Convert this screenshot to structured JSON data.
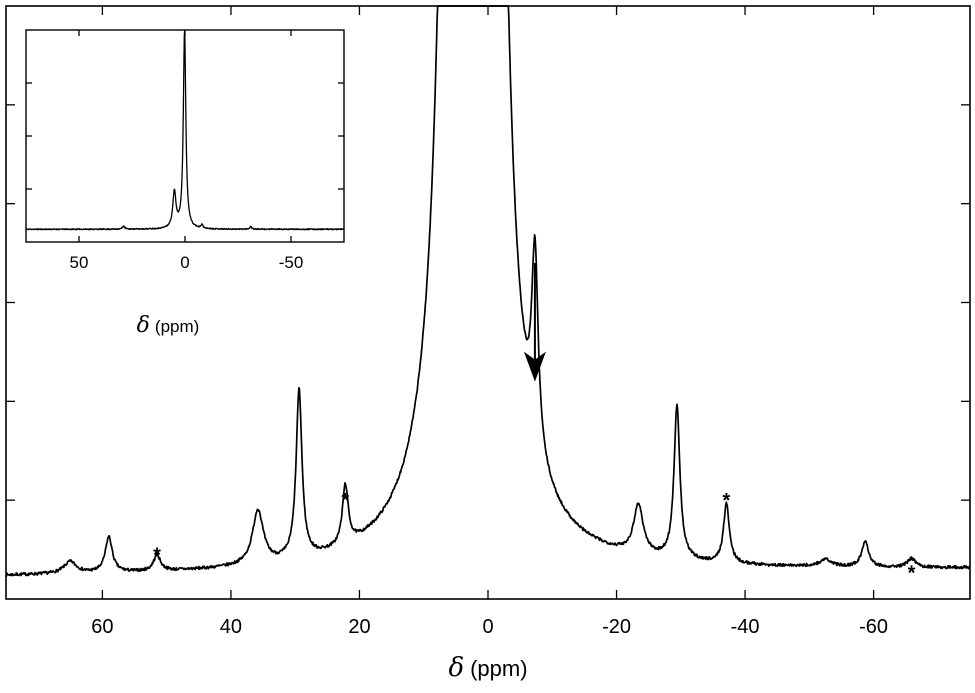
{
  "chart_data": [
    {
      "id": "main",
      "type": "line",
      "xlabel_symbol": "δ",
      "xlabel_unit": "(ppm)",
      "ylabel": "",
      "xlim": [
        75,
        -75
      ],
      "ylim": [
        0,
        6
      ],
      "x_ticks": [
        60,
        40,
        20,
        0,
        -20,
        -40,
        -60
      ],
      "x_tick_labels": [
        "60",
        "40",
        "20",
        "0",
        "-20",
        "-40",
        "-60"
      ],
      "y_ticks": [
        1,
        2,
        3,
        4,
        5
      ],
      "grid": false,
      "baseline": {
        "left": 0.22,
        "right": 0.3
      },
      "peaks": [
        {
          "x": 65,
          "h": 0.12,
          "w": 1.2
        },
        {
          "x": 59,
          "h": 0.36,
          "w": 0.65
        },
        {
          "x": 51.5,
          "h": 0.16,
          "w": 0.65
        },
        {
          "x": 35.8,
          "h": 0.55,
          "w": 1.0
        },
        {
          "x": 29.4,
          "h": 1.7,
          "w": 0.55
        },
        {
          "x": 22.2,
          "h": 0.6,
          "w": 0.55
        },
        {
          "x": 4.6,
          "h": 40,
          "w": 1.2
        },
        {
          "x": 0.2,
          "h": 60,
          "w": 1.0
        },
        {
          "x": -7.3,
          "h": 1.95,
          "w": 0.6
        },
        {
          "x": -23.4,
          "h": 0.5,
          "w": 0.9
        },
        {
          "x": -29.4,
          "h": 1.55,
          "w": 0.55
        },
        {
          "x": -37.1,
          "h": 0.6,
          "w": 0.55
        },
        {
          "x": -52.5,
          "h": 0.07,
          "w": 1.1
        },
        {
          "x": -58.7,
          "h": 0.26,
          "w": 0.65
        },
        {
          "x": -65.9,
          "h": 0.09,
          "w": 0.7
        }
      ],
      "annotations": [
        {
          "text": "*",
          "x": 51.5,
          "y": 0.48
        },
        {
          "text": "*",
          "x": 22.2,
          "y": 1.03
        },
        {
          "text": "*",
          "x": -37.1,
          "y": 1.03
        },
        {
          "text": "*",
          "x": -65.9,
          "y": 0.3
        }
      ],
      "arrow": {
        "x": -7.3,
        "from_y": 3.4,
        "to_y": 2.2
      }
    },
    {
      "id": "inset",
      "type": "line",
      "xlabel_symbol": "δ",
      "xlabel_unit": "(ppm)",
      "xlim": [
        75,
        -75
      ],
      "ylim": [
        0,
        10
      ],
      "x_ticks": [
        50,
        0,
        -50
      ],
      "x_tick_labels": [
        "50",
        "0",
        "-50"
      ],
      "y_ticks": [
        2.5,
        5,
        7.5
      ],
      "grid": false,
      "baseline": 0.6,
      "peaks": [
        {
          "x": 0.2,
          "h": 9.4,
          "w": 0.7
        },
        {
          "x": 5,
          "h": 1.7,
          "w": 0.9
        },
        {
          "x": -8,
          "h": 0.18,
          "w": 0.5
        },
        {
          "x": 29,
          "h": 0.15,
          "w": 0.6
        },
        {
          "x": -31,
          "h": 0.12,
          "w": 0.6
        }
      ]
    }
  ]
}
